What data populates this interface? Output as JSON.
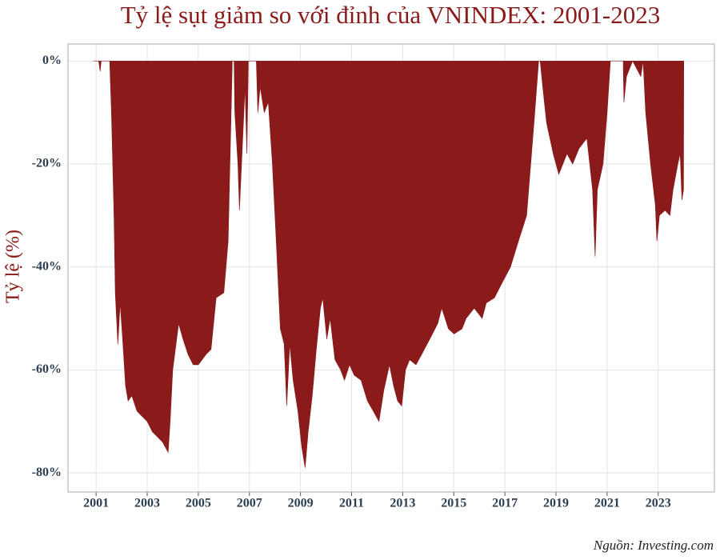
{
  "chart_data": {
    "type": "area",
    "title": "Tỷ lệ sụt giảm so với đỉnh của VNINDEX: 2001-2023",
    "y_label": "Tỷ lệ (%)",
    "source": "Nguồn: Investing.com",
    "color": "#8b1a1a",
    "grid": true,
    "xlim": [
      1999.9,
      2025.2
    ],
    "xticks": [
      2001,
      2003,
      2005,
      2007,
      2009,
      2011,
      2013,
      2015,
      2017,
      2019,
      2021,
      2023
    ],
    "ylim": [
      -83.7,
      3.3
    ],
    "yticks": [
      {
        "value": 0,
        "label": "0%"
      },
      {
        "value": -20,
        "label": "-20%"
      },
      {
        "value": -40,
        "label": "-40%"
      },
      {
        "value": -60,
        "label": "-60%"
      },
      {
        "value": -80,
        "label": "-80%"
      }
    ],
    "x": [
      2000.9,
      2001.1,
      2001.16,
      2001.2,
      2001.53,
      2001.6,
      2001.7,
      2001.75,
      2001.85,
      2001.94,
      2002.05,
      2002.15,
      2002.25,
      2002.4,
      2002.6,
      2002.8,
      2003.0,
      2003.2,
      2003.4,
      2003.6,
      2003.82,
      2003.9,
      2004.0,
      2004.23,
      2004.4,
      2004.6,
      2004.8,
      2005.0,
      2005.3,
      2005.5,
      2005.7,
      2006.0,
      2006.17,
      2006.33,
      2006.4,
      2006.43,
      2006.55,
      2006.61,
      2006.74,
      2006.83,
      2006.9,
      2006.96,
      2007.27,
      2007.33,
      2007.42,
      2007.58,
      2007.74,
      2007.9,
      2008.05,
      2008.21,
      2008.36,
      2008.46,
      2008.58,
      2008.71,
      2008.9,
      2009.05,
      2009.18,
      2009.3,
      2009.46,
      2009.62,
      2009.78,
      2009.87,
      2010.03,
      2010.16,
      2010.35,
      2010.57,
      2010.72,
      2010.92,
      2011.1,
      2011.37,
      2011.62,
      2011.85,
      2012.07,
      2012.26,
      2012.48,
      2012.64,
      2012.8,
      2012.96,
      2013.11,
      2013.27,
      2013.52,
      2013.74,
      2014.06,
      2014.37,
      2014.53,
      2014.79,
      2015.01,
      2015.32,
      2015.48,
      2015.8,
      2016.11,
      2016.27,
      2016.59,
      2016.9,
      2017.22,
      2017.53,
      2017.85,
      2018.01,
      2018.17,
      2018.32,
      2018.38,
      2018.48,
      2018.63,
      2018.89,
      2019.11,
      2019.43,
      2019.65,
      2019.9,
      2020.21,
      2020.43,
      2020.53,
      2020.62,
      2020.84,
      2021.0,
      2021.13,
      2021.63,
      2021.66,
      2021.76,
      2022.0,
      2022.32,
      2022.41,
      2022.51,
      2022.7,
      2022.89,
      2022.95,
      2023.05,
      2023.27,
      2023.46,
      2023.58,
      2023.77,
      2023.86,
      2023.93,
      2023.99,
      2024.0
    ],
    "values": [
      0,
      0,
      -2,
      0,
      0,
      -10,
      -30,
      -45,
      -55,
      -47,
      -55,
      -63,
      -66,
      -65,
      -68,
      -69,
      -70,
      -72,
      -73,
      -74,
      -76,
      -70,
      -60,
      -51,
      -54,
      -57,
      -59,
      -59,
      -57,
      -56,
      -46,
      -45,
      -35,
      0,
      0,
      -10,
      -20,
      -29,
      -15,
      -5,
      -18,
      0,
      0,
      -10,
      -5,
      -10,
      -8,
      -20,
      -35,
      -52,
      -55,
      -67,
      -55,
      -62,
      -68,
      -75,
      -79,
      -72,
      -65,
      -56,
      -48,
      -46,
      -54,
      -50,
      -58,
      -60,
      -62,
      -59,
      -61,
      -62,
      -66,
      -68,
      -70,
      -64,
      -59,
      -63,
      -66,
      -67,
      -60,
      -58,
      -59,
      -57,
      -54,
      -51,
      -48,
      -52,
      -53,
      -52,
      -50,
      -48,
      -50,
      -47,
      -46,
      -43,
      -40,
      -35,
      -30,
      -20,
      -10,
      0,
      0,
      -5,
      -12,
      -18,
      -22,
      -18,
      -20,
      -17,
      -15,
      -25,
      -38,
      -25,
      -20,
      -10,
      0,
      0,
      -8,
      -3,
      0,
      -3,
      0,
      -10,
      -20,
      -28,
      -35,
      -30,
      -29,
      -30,
      -25,
      -20,
      -18,
      -27,
      -25,
      0
    ]
  }
}
